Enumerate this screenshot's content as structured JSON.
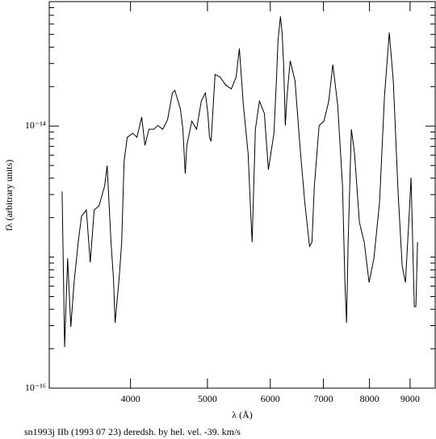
{
  "chart_data": {
    "type": "line",
    "x_label": "λ (Å)",
    "y_label": "fλ (arbitrary units)",
    "caption": "sn1993j IIb (1993 07 23) deredsh. by hel. vel.   -39. km/s",
    "xscale": "log",
    "yscale": "log",
    "color": "#000000",
    "xlim": [
      3160,
      9680
    ],
    "ylim": [
      1e-16,
      8.9e-14
    ],
    "xticks": [
      4000,
      5000,
      6000,
      7000,
      8000,
      9000
    ],
    "yticks": [
      {
        "value": 1e-16,
        "label": "10⁻¹⁶"
      },
      {
        "value": 1e-14,
        "label": "10⁻¹⁴"
      }
    ],
    "yminor_ticks": [
      2e-16,
      3e-16,
      4e-16,
      5e-16,
      6e-16,
      7e-16,
      8e-16,
      9e-16,
      1e-15,
      2e-15,
      3e-15,
      4e-15,
      5e-15,
      6e-15,
      7e-15,
      8e-15,
      9e-15,
      2e-14,
      3e-14,
      4e-14,
      5e-14,
      6e-14,
      7e-14,
      8e-14
    ],
    "x": [
      3280,
      3304,
      3333,
      3364,
      3396,
      3437,
      3470,
      3519,
      3559,
      3600,
      3651,
      3711,
      3738,
      3780,
      3807,
      3825,
      3870,
      3899,
      3926,
      3962,
      4028,
      4075,
      4132,
      4171,
      4220,
      4279,
      4330,
      4392,
      4454,
      4517,
      4549,
      4623,
      4656,
      4688,
      4710,
      4778,
      4845,
      4912,
      4970,
      5006,
      5030,
      5053,
      5112,
      5184,
      5271,
      5359,
      5434,
      5485,
      5549,
      5626,
      5666,
      5692,
      5746,
      5814,
      5897,
      5967,
      6064,
      6107,
      6136,
      6179,
      6208,
      6237,
      6267,
      6297,
      6356,
      6446,
      6538,
      6630,
      6723,
      6770,
      6818,
      6913,
      7011,
      7109,
      7193,
      7295,
      7398,
      7450,
      7485,
      7520,
      7590,
      7661,
      7769,
      7879,
      7991,
      8104,
      8238,
      8355,
      8473,
      8572,
      8694,
      8797,
      8880,
      8983,
      9025,
      9111,
      9153,
      9196
    ],
    "values": [
      3.17e-15,
      2.06e-16,
      9.79e-16,
      2.94e-16,
      6.4e-16,
      1.3e-15,
      2.05e-15,
      2.29e-15,
      9.12e-16,
      2.29e-15,
      2.46e-15,
      3.5e-15,
      4.99e-15,
      1.3e-15,
      6.87e-16,
      3.15e-16,
      6.87e-16,
      1.3e-15,
      5.36e-15,
      8.2e-15,
      8.81e-15,
      8.2e-15,
      1.17e-14,
      7.12e-15,
      9.45e-15,
      9.45e-15,
      1.01e-14,
      9.45e-15,
      1.12e-14,
      1.79e-14,
      1.87e-14,
      1.35e-14,
      9.45e-15,
      4.33e-15,
      7.12e-15,
      1.09e-14,
      9.45e-15,
      1.55e-14,
      1.79e-14,
      1.25e-14,
      8.2e-15,
      7.64e-15,
      2.48e-14,
      2.37e-14,
      2.06e-14,
      1.92e-14,
      2.37e-14,
      3.9e-14,
      1.45e-14,
      6.18e-15,
      2.29e-15,
      1.3e-15,
      9.45e-15,
      1.55e-14,
      1.25e-14,
      4.65e-15,
      8.81e-15,
      2.21e-14,
      4.49e-14,
      6.87e-14,
      5.17e-14,
      2.94e-14,
      1.01e-14,
      1.67e-14,
      3.15e-14,
      2.21e-14,
      7.12e-15,
      2.64e-15,
      1.21e-15,
      1.3e-15,
      3.5e-15,
      1.01e-14,
      1.09e-14,
      1.55e-14,
      2.94e-14,
      1.45e-14,
      3.5e-15,
      6.4e-16,
      3.15e-16,
      1.3e-15,
      9.45e-15,
      6.18e-15,
      1.85e-15,
      1.3e-15,
      6.4e-16,
      9.79e-16,
      2.64e-15,
      1.67e-14,
      5.17e-14,
      2.21e-14,
      3.04e-15,
      8.5e-16,
      6.4e-16,
      2.29e-15,
      4.04e-15,
      4.19e-16,
      4.19e-16,
      1.3e-15
    ]
  }
}
